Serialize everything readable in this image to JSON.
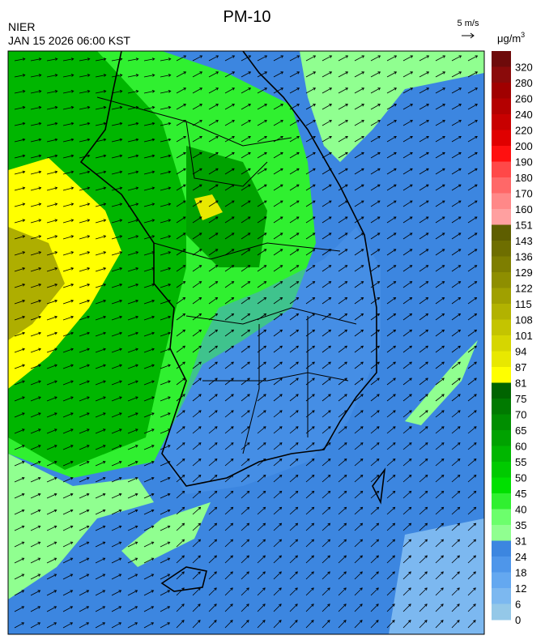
{
  "header": {
    "title": "PM-10",
    "agency": "NIER",
    "datetime": "JAN 15 2026 06:00 KST",
    "wind_scale": "5 m/s"
  },
  "legend": {
    "unit": {
      "base": "μg/m",
      "exponent": "3"
    },
    "levels": [
      {
        "value": 320,
        "color": "#6e0a0a"
      },
      {
        "value": 280,
        "color": "#8a0a0a"
      },
      {
        "value": 260,
        "color": "#a00000"
      },
      {
        "value": 240,
        "color": "#b40000"
      },
      {
        "value": 220,
        "color": "#c80000"
      },
      {
        "value": 200,
        "color": "#e00000"
      },
      {
        "value": 190,
        "color": "#ff1010"
      },
      {
        "value": 180,
        "color": "#ff4848"
      },
      {
        "value": 170,
        "color": "#ff6868"
      },
      {
        "value": 160,
        "color": "#ff8888"
      },
      {
        "value": 151,
        "color": "#ffa0a0"
      },
      {
        "value": 143,
        "color": "#5e5e00"
      },
      {
        "value": 136,
        "color": "#6e6e00"
      },
      {
        "value": 129,
        "color": "#7e7e00"
      },
      {
        "value": 122,
        "color": "#8e8e00"
      },
      {
        "value": 115,
        "color": "#a0a000"
      },
      {
        "value": 108,
        "color": "#b2b200"
      },
      {
        "value": 101,
        "color": "#c4c400"
      },
      {
        "value": 94,
        "color": "#d6d600"
      },
      {
        "value": 87,
        "color": "#e8e800"
      },
      {
        "value": 81,
        "color": "#ffff00"
      },
      {
        "value": 75,
        "color": "#006400"
      },
      {
        "value": 70,
        "color": "#007a00"
      },
      {
        "value": 65,
        "color": "#008e00"
      },
      {
        "value": 60,
        "color": "#00a200"
      },
      {
        "value": 55,
        "color": "#00b600"
      },
      {
        "value": 50,
        "color": "#00ca00"
      },
      {
        "value": 45,
        "color": "#00e000"
      },
      {
        "value": 40,
        "color": "#30f030"
      },
      {
        "value": 35,
        "color": "#6cff6c"
      },
      {
        "value": 31,
        "color": "#90ff90"
      },
      {
        "value": 24,
        "color": "#3c86e0"
      },
      {
        "value": 18,
        "color": "#4e96ea"
      },
      {
        "value": 12,
        "color": "#64a8f0"
      },
      {
        "value": 6,
        "color": "#7cb8f0"
      },
      {
        "value": 0,
        "color": "#94c8e8"
      }
    ]
  }
}
